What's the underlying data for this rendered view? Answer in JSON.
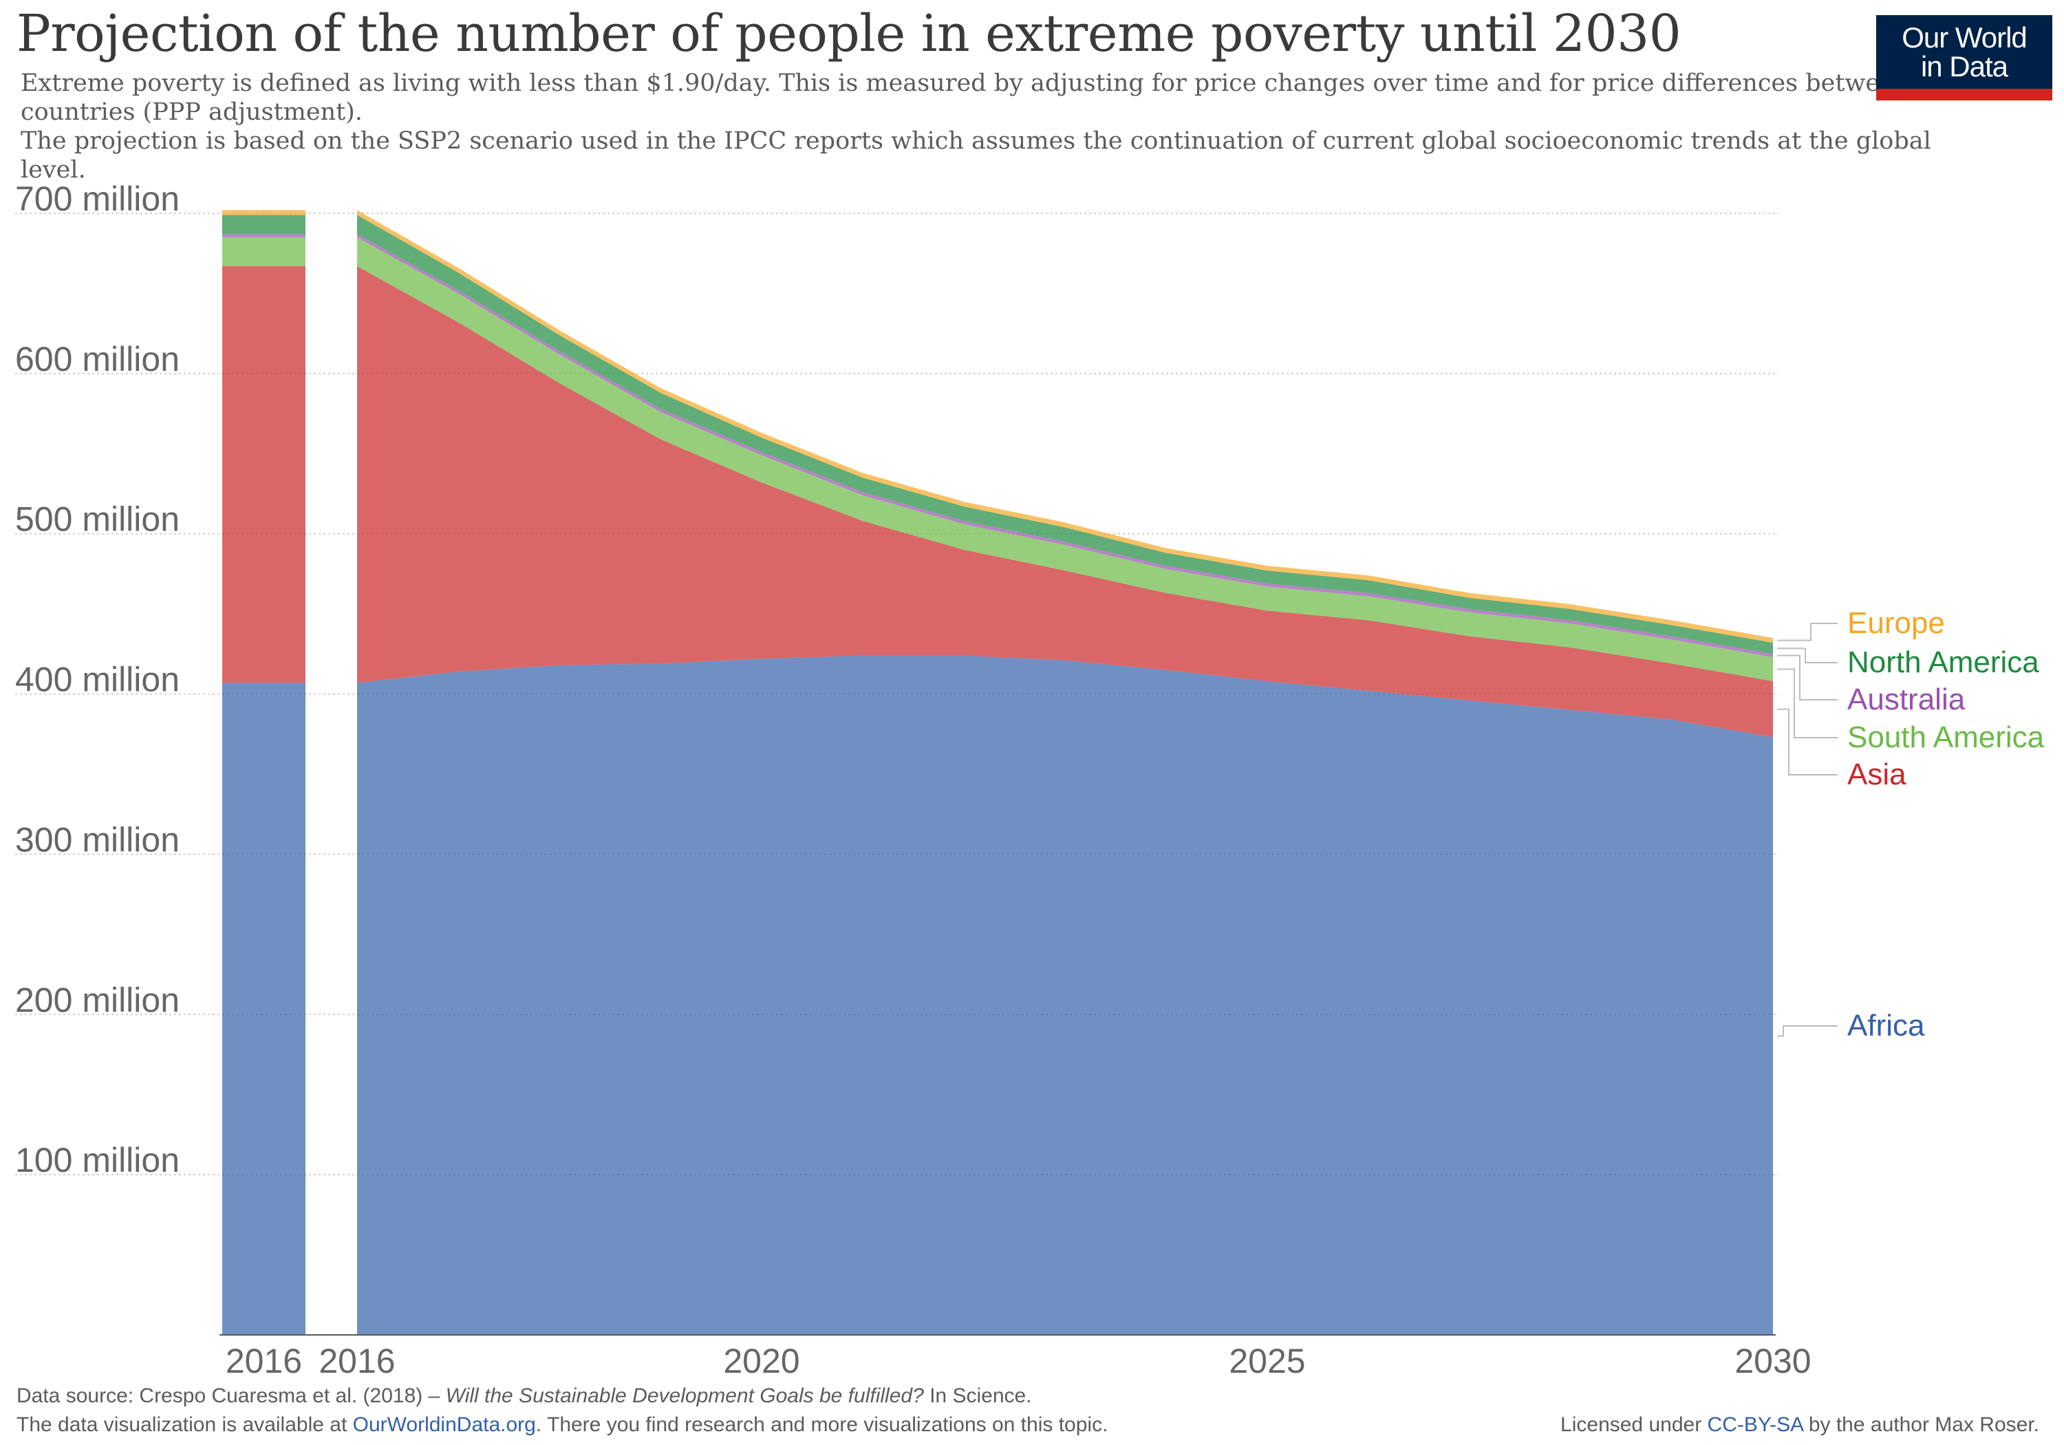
{
  "header": {
    "title": "Projection of the number of people in extreme poverty until 2030",
    "subtitle_line1": "Extreme poverty is defined as living with less than $1.90/day. This is measured by adjusting for price changes over time and for price differences between countries (PPP adjustment).",
    "subtitle_line2": "The projection is based on the SSP2 scenario used in the IPCC reports which assumes the continuation of current global socioeconomic trends at the global level."
  },
  "logo": {
    "line1": "Our World",
    "line2": "in Data"
  },
  "footer": {
    "source_prefix": "Data source: Crespo Cuaresma et al. (2018) – ",
    "source_title": "Will the Sustainable Development Goals be fulfilled?",
    "source_suffix": " In Science.",
    "avail_prefix": "The data visualization is available at ",
    "avail_link": "OurWorldinData.org",
    "avail_suffix": ". There you find research and more visualizations on this topic.",
    "license_prefix": "Licensed under ",
    "license_link": "CC-BY-SA",
    "license_suffix": " by the author Max Roser."
  },
  "chart_data": {
    "type": "area",
    "stacked": true,
    "ylim": [
      0,
      700000000
    ],
    "y_ticks": [
      100000000,
      200000000,
      300000000,
      400000000,
      500000000,
      600000000,
      700000000
    ],
    "y_tick_labels": [
      "100 million",
      "200 million",
      "300 million",
      "400 million",
      "500 million",
      "600 million",
      "700 million"
    ],
    "x_ticks": [
      2020,
      2025,
      2030
    ],
    "x_tick_labels": [
      "2020",
      "2025",
      "2030"
    ],
    "xlim": [
      2016,
      2030
    ],
    "grid": "horizontal dotted",
    "legend": "right (labels at series ends)",
    "snapshot": {
      "label": "2016",
      "year": 2016
    },
    "x": [
      2016,
      2017,
      2018,
      2019,
      2020,
      2021,
      2022,
      2023,
      2024,
      2025,
      2026,
      2027,
      2028,
      2029,
      2030
    ],
    "series": [
      {
        "name": "Africa",
        "color": "#3360a9",
        "values": [
          407,
          414,
          418,
          419,
          422,
          424,
          424,
          421,
          415,
          408,
          402,
          396,
          390,
          384,
          373
        ]
      },
      {
        "name": "Asia",
        "color": "#ca2628",
        "values": [
          260,
          218,
          176,
          140,
          110,
          84,
          66,
          56,
          48,
          44,
          44,
          40,
          39,
          35,
          35
        ]
      },
      {
        "name": "South America",
        "color": "#6ab945",
        "values": [
          18,
          18,
          18,
          17,
          17,
          16,
          16,
          16,
          15,
          15,
          15,
          15,
          15,
          15,
          15
        ]
      },
      {
        "name": "Australia",
        "color": "#9a4fb1",
        "values": [
          2,
          2,
          2,
          2,
          2,
          2,
          2,
          2,
          2,
          2,
          2,
          2,
          2,
          2,
          2
        ]
      },
      {
        "name": "North America",
        "color": "#1d8a3e",
        "values": [
          12,
          11,
          10,
          10,
          9,
          9,
          9,
          9,
          8,
          8,
          8,
          7,
          7,
          7,
          7
        ]
      },
      {
        "name": "Europe",
        "color": "#f5a623",
        "values": [
          3,
          3,
          3,
          3,
          3,
          3,
          3,
          3,
          3,
          3,
          3,
          3,
          3,
          3,
          3
        ]
      }
    ],
    "units": "million"
  }
}
